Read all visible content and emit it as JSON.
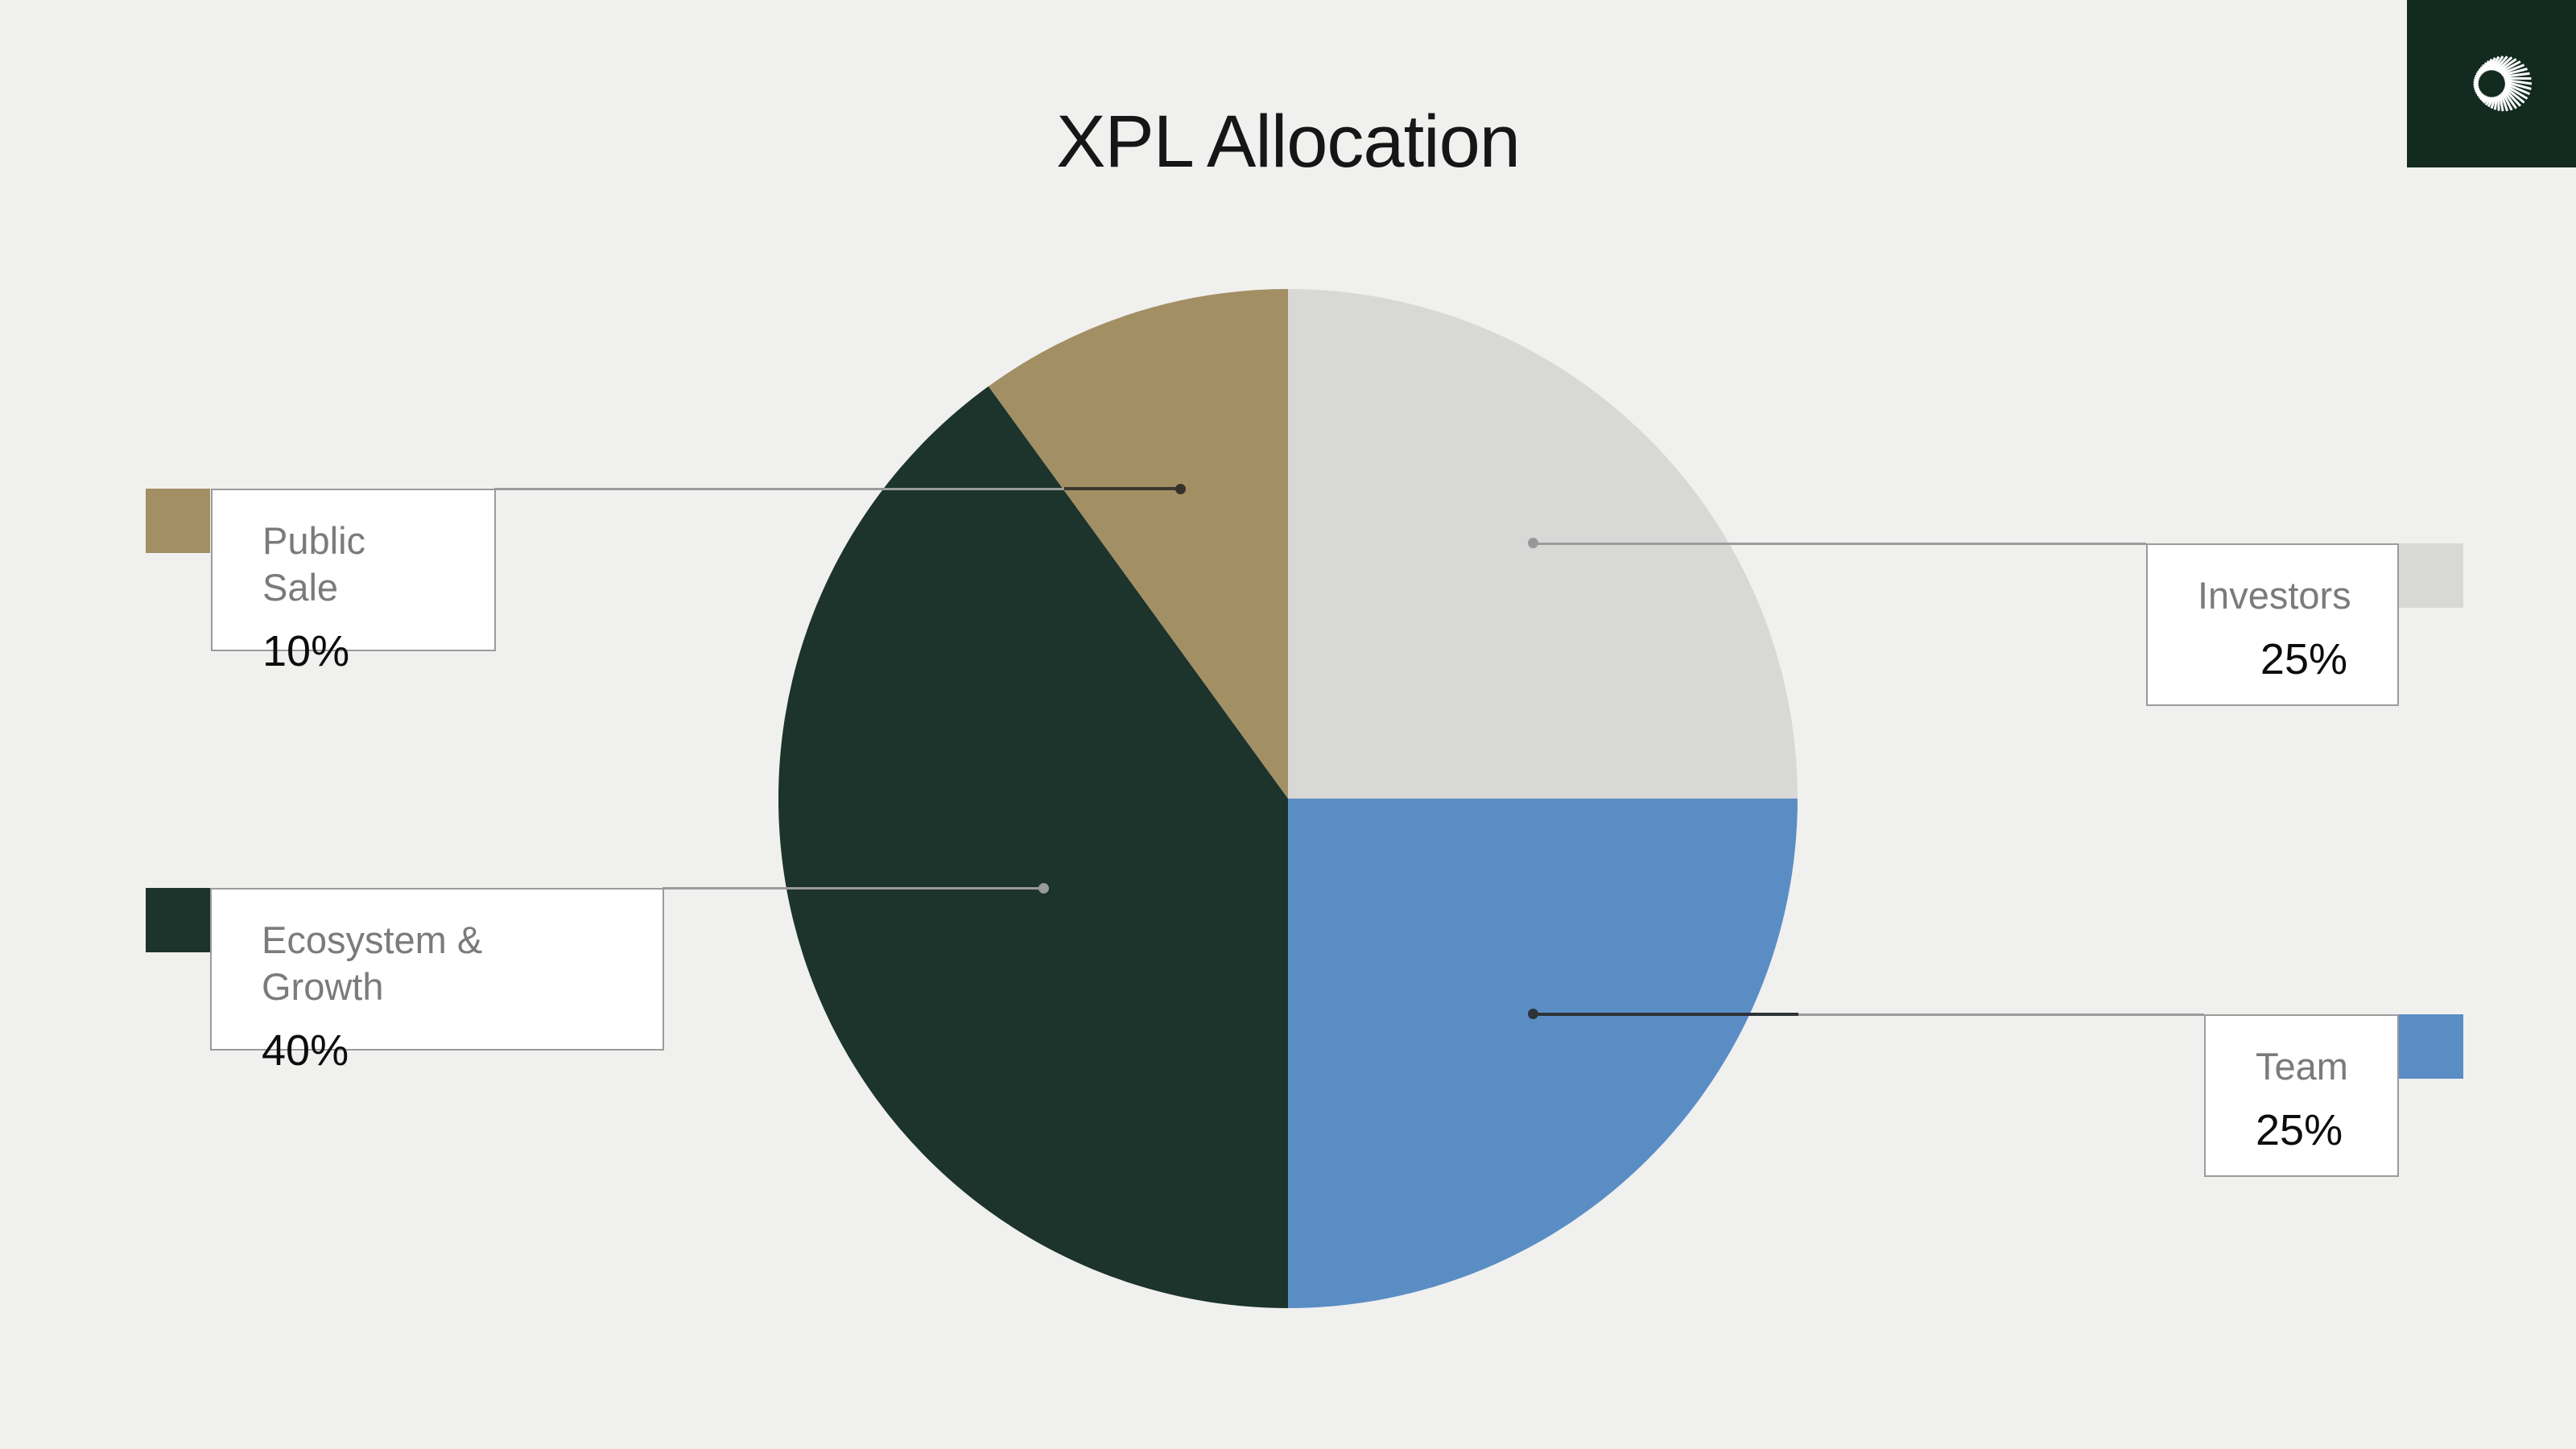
{
  "page": {
    "title": "XPL Allocation",
    "background": "#f0f0ef",
    "title_color": "#161616"
  },
  "logo": {
    "name": "plasma-sunburst",
    "background": "#122a20",
    "ray_color": "#ffffff"
  },
  "chart_data": {
    "type": "pie",
    "title": "XPL Allocation",
    "start_at": "12-oclock",
    "direction": "clockwise",
    "legend_position": "callout-boxes",
    "segments": [
      {
        "label": "Investors",
        "value": 25,
        "unit": "%",
        "color": "#d8d8d7"
      },
      {
        "label": "Team",
        "value": 25,
        "unit": "%",
        "color": "#5b8dc5"
      },
      {
        "label": "Ecosystem & Growth",
        "value": 40,
        "unit": "%",
        "color": "#1c342b"
      },
      {
        "label": "Public Sale",
        "value": 10,
        "unit": "%",
        "color": "#a38f64"
      }
    ]
  },
  "callouts": {
    "public_sale": {
      "label": "Public Sale",
      "value": "10%",
      "swatch_color": "#a38f64",
      "line_color": "#9b9b9b",
      "tip_color": "#3a372e",
      "dot_color": "#35322c"
    },
    "ecosystem": {
      "label": "Ecosystem & Growth",
      "value": "40%",
      "swatch_color": "#1c342b",
      "line_color": "#9b9b9b",
      "dot_color": "#9a9a9a"
    },
    "investors": {
      "label": "Investors",
      "value": "25%",
      "swatch_color": "#d8d8d7",
      "line_color": "#9b9b9b",
      "dot_color": "#989898"
    },
    "team": {
      "label": "Team",
      "value": "25%",
      "swatch_color": "#5b8dc5",
      "line_color": "#9b9b9b",
      "tip_color": "#2e3338",
      "dot_color": "#2e3338"
    }
  },
  "styles": {
    "box_bg": "#ffffff",
    "box_border": "#9b9b9b",
    "label_text": "#7b7b7b",
    "value_text": "#0c0c0c"
  }
}
